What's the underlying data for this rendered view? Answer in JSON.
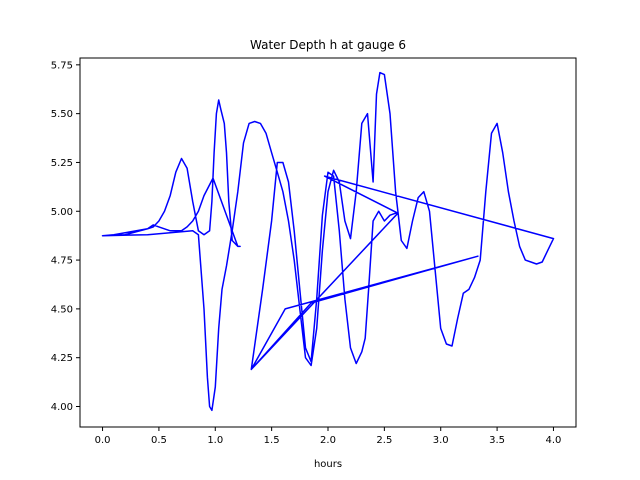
{
  "chart_data": {
    "type": "line",
    "title": "Water Depth h at gauge 6",
    "xlabel": "hours",
    "ylabel": "",
    "xlim": [
      -0.2,
      4.2
    ],
    "ylim": [
      3.895,
      5.785
    ],
    "xticks": [
      0.0,
      0.5,
      1.0,
      1.5,
      2.0,
      2.5,
      3.0,
      3.5,
      4.0
    ],
    "xtick_labels": [
      "0.0",
      "0.5",
      "1.0",
      "1.5",
      "2.0",
      "2.5",
      "3.0",
      "3.5",
      "4.0"
    ],
    "yticks": [
      4.0,
      4.25,
      4.5,
      4.75,
      5.0,
      5.25,
      5.5,
      5.75
    ],
    "ytick_labels": [
      "4.00",
      "4.25",
      "4.50",
      "4.75",
      "5.00",
      "5.25",
      "5.50",
      "5.75"
    ],
    "grid": false,
    "series": [
      {
        "color": "#0000ff",
        "x": [
          0.0,
          0.1,
          0.2,
          0.3,
          0.4,
          0.45,
          0.5,
          0.55,
          0.6,
          0.65,
          0.7,
          0.75,
          0.8,
          0.85,
          0.9,
          0.95,
          0.97,
          0.99,
          1.01,
          1.03,
          1.05,
          1.08,
          1.1,
          1.12,
          1.15,
          1.2,
          1.22,
          1.2,
          0.98,
          0.9,
          0.85,
          0.8,
          0.75,
          0.7,
          0.6,
          0.5,
          0.45,
          0.4,
          0.2,
          0.0,
          0.4,
          0.6,
          0.8,
          0.85,
          0.9,
          0.93,
          0.95,
          0.97,
          1.0,
          1.03,
          1.06,
          1.1,
          1.15,
          1.2,
          1.25,
          1.3,
          1.35,
          1.4,
          1.45,
          1.5,
          1.55,
          1.6,
          1.65,
          1.7,
          1.75,
          1.8,
          1.85,
          1.9,
          1.95,
          2.0,
          2.05,
          2.1,
          2.15,
          2.2,
          2.25,
          2.3,
          2.35,
          2.4,
          2.43,
          2.46,
          2.5,
          2.55,
          2.6,
          2.65,
          2.7,
          2.75,
          2.8,
          2.85,
          2.9,
          2.95,
          3.0,
          3.05,
          3.1,
          3.15,
          3.2,
          3.25,
          3.3,
          3.35,
          3.4,
          3.45,
          3.5,
          3.55,
          3.6,
          3.65,
          3.7,
          3.75,
          3.8,
          3.85,
          3.9,
          3.95,
          4.0,
          1.97,
          2.62,
          1.32,
          1.62,
          3.33,
          1.85,
          1.32,
          1.42,
          1.5,
          1.55,
          1.6,
          1.65,
          1.7,
          1.75,
          1.8,
          1.85,
          1.9,
          1.95,
          2.0,
          2.05,
          2.1,
          2.15,
          2.2,
          2.25,
          2.3,
          2.33,
          2.36,
          2.4,
          2.45,
          2.5,
          2.55,
          2.6,
          2.62
        ],
        "y": [
          4.875,
          4.88,
          4.89,
          4.9,
          4.91,
          4.92,
          4.95,
          5.0,
          5.08,
          5.2,
          5.27,
          5.22,
          5.05,
          4.9,
          4.88,
          4.9,
          5.05,
          5.3,
          5.5,
          5.57,
          5.52,
          5.45,
          5.3,
          5.05,
          4.85,
          4.82,
          4.82,
          4.82,
          5.17,
          5.08,
          5.0,
          4.95,
          4.92,
          4.9,
          4.9,
          4.92,
          4.93,
          4.91,
          4.88,
          4.875,
          4.88,
          4.89,
          4.9,
          4.88,
          4.5,
          4.15,
          4.0,
          3.98,
          4.1,
          4.4,
          4.6,
          4.72,
          4.9,
          5.1,
          5.35,
          5.45,
          5.46,
          5.45,
          5.4,
          5.3,
          5.2,
          5.1,
          4.95,
          4.75,
          4.5,
          4.25,
          4.21,
          4.4,
          4.8,
          5.1,
          5.21,
          5.15,
          4.95,
          4.86,
          5.1,
          5.45,
          5.5,
          5.15,
          5.6,
          5.71,
          5.7,
          5.5,
          5.1,
          4.85,
          4.81,
          4.95,
          5.07,
          5.1,
          5.0,
          4.7,
          4.4,
          4.32,
          4.31,
          4.45,
          4.58,
          4.6,
          4.66,
          4.75,
          5.1,
          5.4,
          5.45,
          5.3,
          5.1,
          4.95,
          4.82,
          4.75,
          4.74,
          4.73,
          4.74,
          4.8,
          4.86,
          5.18,
          4.99,
          4.19,
          4.5,
          4.77,
          4.53,
          4.19,
          4.6,
          4.95,
          5.25,
          5.25,
          5.15,
          4.9,
          4.6,
          4.3,
          4.23,
          4.55,
          4.98,
          5.2,
          5.18,
          4.9,
          4.55,
          4.3,
          4.22,
          4.28,
          4.35,
          4.6,
          4.95,
          5.0,
          4.95,
          4.98,
          4.99,
          4.99
        ]
      }
    ]
  }
}
